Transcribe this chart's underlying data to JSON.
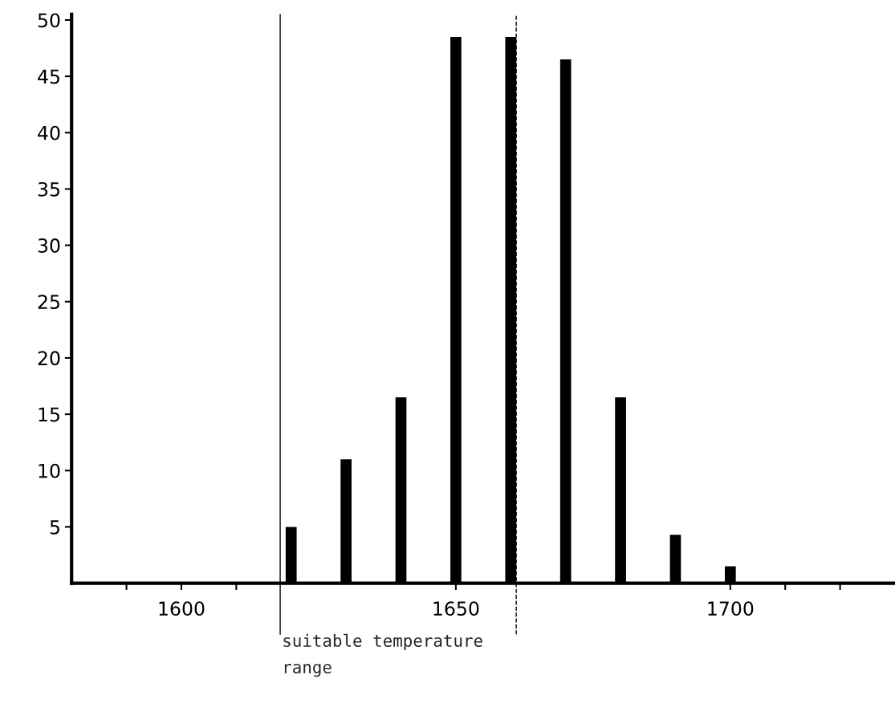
{
  "chart_data": {
    "type": "bar",
    "x": [
      1620,
      1630,
      1640,
      1650,
      1660,
      1670,
      1680,
      1690,
      1700
    ],
    "values": [
      5,
      11,
      16.5,
      48.5,
      48.5,
      46.5,
      16.5,
      4.3,
      1.5
    ],
    "color": "#000000",
    "xlim": [
      1580,
      1730
    ],
    "xticks": [
      {
        "value": 1590,
        "label": null
      },
      1600,
      {
        "value": 1610,
        "label": null
      },
      1650,
      1700,
      {
        "value": 1710,
        "label": null
      },
      {
        "value": 1720,
        "label": null
      }
    ],
    "ylim": [
      0,
      50.5
    ],
    "yticks": [
      5,
      10,
      15,
      20,
      25,
      30,
      35,
      40,
      45,
      50
    ],
    "ref_lines": [
      {
        "axis": "x",
        "value": 1618,
        "color": "#000000"
      },
      {
        "axis": "x",
        "value": 1661,
        "color": "#000000",
        "line_style": "dashed"
      }
    ],
    "annotations": [
      "suitable temperature\nrange"
    ],
    "grid": false
  }
}
